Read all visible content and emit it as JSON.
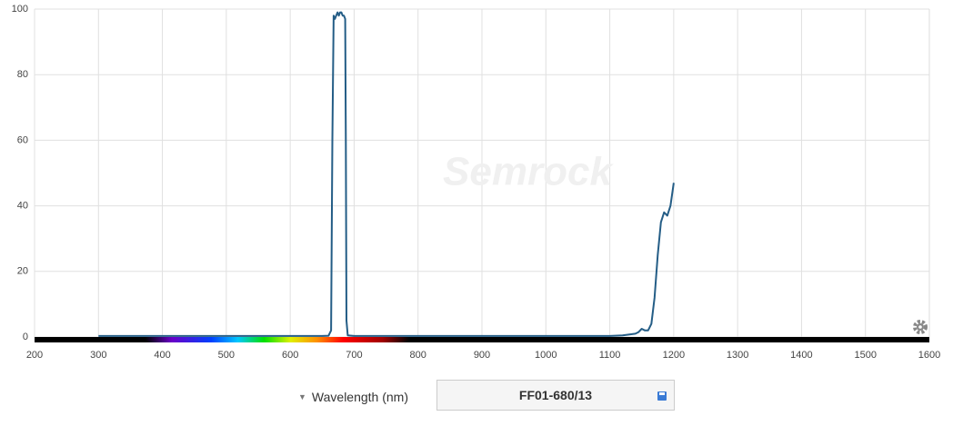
{
  "chart_data": {
    "type": "line",
    "watermark": "Semrock",
    "x": [
      300,
      400,
      500,
      600,
      650,
      660,
      664,
      666,
      668,
      670,
      672,
      674,
      676,
      678,
      680,
      682,
      684,
      686,
      687,
      688,
      690,
      700,
      800,
      900,
      1000,
      1100,
      1120,
      1140,
      1145,
      1150,
      1155,
      1160,
      1165,
      1170,
      1175,
      1180,
      1185,
      1190,
      1195,
      1200
    ],
    "series": [
      {
        "color": "#245d86",
        "values": [
          0.3,
          0.3,
          0.3,
          0.3,
          0.3,
          0.4,
          2,
          60,
          98,
          97,
          98,
          99,
          98,
          99,
          99,
          98,
          98,
          97,
          60,
          5,
          0.5,
          0.3,
          0.3,
          0.3,
          0.3,
          0.3,
          0.5,
          1,
          1.5,
          2.5,
          2,
          2,
          4,
          12,
          25,
          35,
          38,
          37,
          40,
          47
        ]
      }
    ],
    "xlim": [
      200,
      1600
    ],
    "xticks": [
      200,
      300,
      400,
      500,
      600,
      700,
      800,
      900,
      1000,
      1100,
      1200,
      1300,
      1400,
      1500,
      1600
    ],
    "ylim": [
      0,
      100
    ],
    "yticks": [
      0,
      20,
      40,
      60,
      80,
      100
    ],
    "grid": true
  },
  "controls": {
    "axis_unit": "Wavelength (nm)",
    "filter_name": "FF01-680/13"
  }
}
